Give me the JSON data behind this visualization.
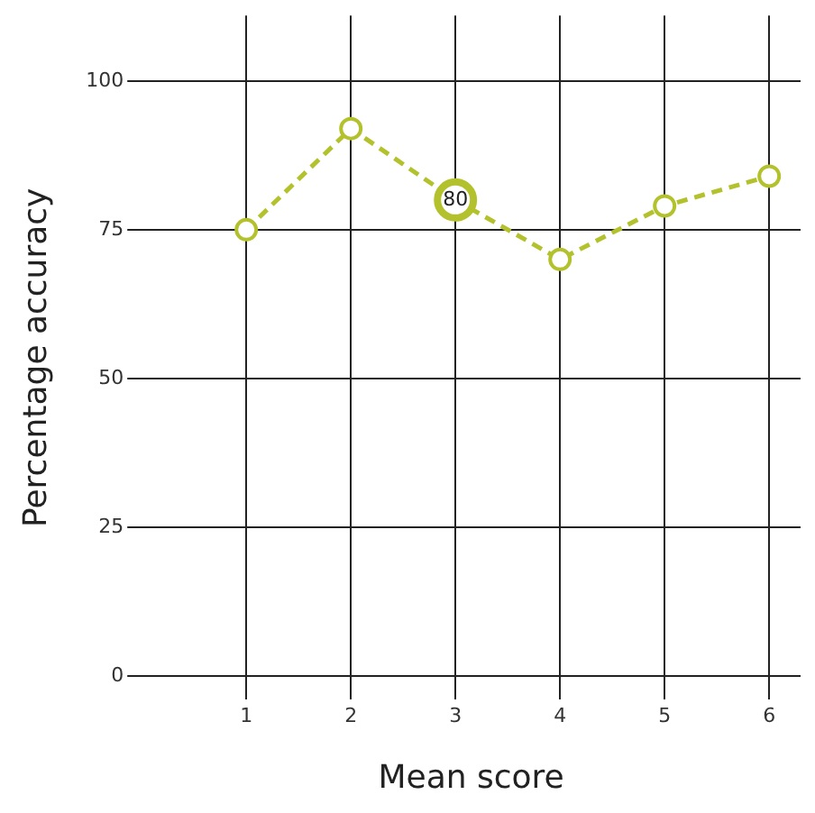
{
  "chart_data": {
    "type": "line",
    "xlabel": "Mean score",
    "ylabel": "Percentage accuracy",
    "x": [
      1,
      2,
      3,
      4,
      5,
      6
    ],
    "series": [
      {
        "color": "#b3c22c",
        "values": [
          75,
          92,
          80,
          70,
          79,
          84
        ],
        "value_labels": [
          null,
          null,
          "80",
          null,
          null,
          null
        ]
      }
    ],
    "xlim": [
      0,
      6.3
    ],
    "xticks": [
      1,
      2,
      3,
      4,
      5,
      6
    ],
    "ylim": [
      -4,
      111
    ],
    "yticks": [
      0,
      25,
      50,
      75,
      100
    ],
    "grid": true,
    "legend": false,
    "marker": "circle",
    "line_style": "dashed"
  }
}
